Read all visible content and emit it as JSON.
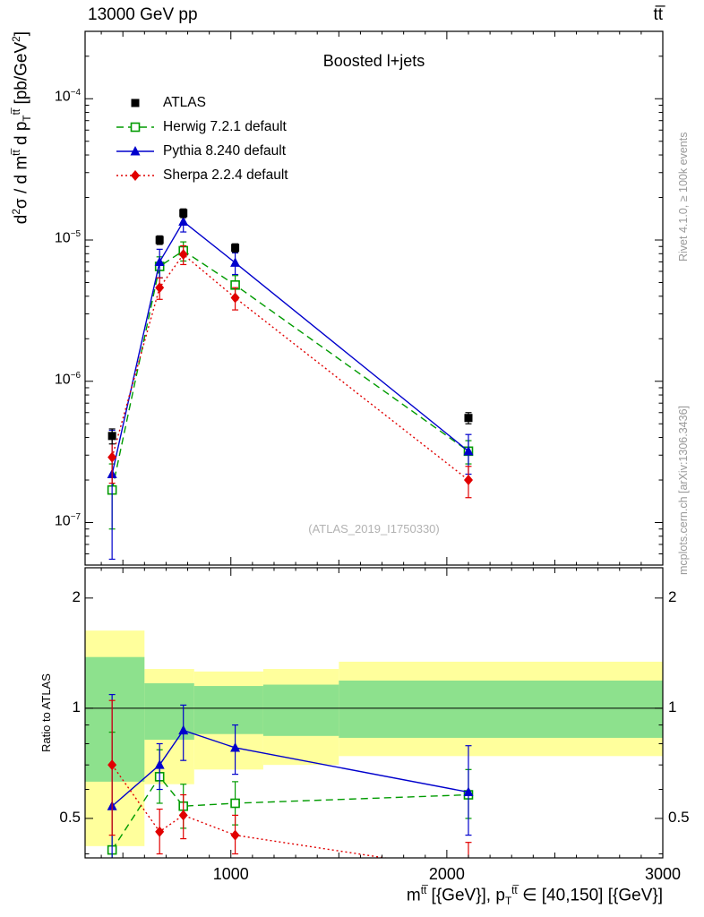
{
  "header": {
    "left_title": "13000 GeV pp",
    "right_title": "tt̅"
  },
  "panel_title": "Boosted l+jets",
  "watermark": "(ATLAS_2019_I1750330)",
  "side_notes": {
    "top": "Rivet 4.1.0, ≥ 100k events",
    "bottom": "mcplots.cern.ch [arXiv:1306.3436]"
  },
  "axes": {
    "ratio_title": "Ratio to ATLAS",
    "y_main_title_rich": [
      [
        "n",
        "d"
      ],
      [
        "sup",
        "2"
      ],
      [
        "n",
        "σ / d m"
      ],
      [
        "sup",
        "tt̅"
      ],
      [
        "n",
        " d p"
      ],
      [
        "sub",
        "T"
      ],
      [
        "sup",
        "tt̅"
      ],
      [
        "n",
        " [pb/GeV"
      ],
      [
        "sup",
        "2"
      ],
      [
        "n",
        "]"
      ]
    ],
    "x_title_rich": [
      [
        "n",
        "m"
      ],
      [
        "sup",
        "tt̅"
      ],
      [
        "n",
        " [{GeV}], p"
      ],
      [
        "sub",
        "T"
      ],
      [
        "sup",
        "tt̅"
      ],
      [
        "n",
        " ∈ [40,150] [{GeV}]"
      ]
    ]
  },
  "colors": {
    "atlas": "#000000",
    "herwig": "#009b00",
    "pythia": "#0000cc",
    "sherpa": "#e10000",
    "band_yellow": "#ffff9c",
    "band_green": "#8de18d"
  },
  "chart_data": {
    "type": "line",
    "title": "Boosted l+jets",
    "xlabel": "m^{tt} [{GeV}], p_T^{tt} ∈ [40,150] [{GeV}]",
    "ylabel": "d^2σ / d m^{tt} d p_T^{tt} [pb/GeV^2]",
    "xlim": [
      325,
      3000
    ],
    "x_major_ticks": [
      1000,
      2000,
      3000
    ],
    "ylim_main": [
      5e-08,
      0.0003
    ],
    "y_main_decades": [
      -4,
      -5,
      -6,
      -7
    ],
    "ylim_ratio": [
      0.39,
      2.42
    ],
    "ratio_labeled_ticks": [
      0.5,
      1,
      2
    ],
    "ratio_minor_ticks": [
      0.4,
      0.6,
      0.7,
      0.8,
      0.9
    ],
    "legend_position": "top-left",
    "grid": false,
    "x": [
      450,
      670,
      780,
      1020,
      2100
    ],
    "series": [
      {
        "name": "ATLAS",
        "color": "#000000",
        "line": "none",
        "marker": "square-filled",
        "values": [
          4.1e-07,
          1e-05,
          1.55e-05,
          8.8e-06,
          5.5e-07
        ],
        "yerr": [
          [
            5e-08,
            5e-08
          ],
          [
            7e-07,
            7e-07
          ],
          [
            1.1e-06,
            1.1e-06
          ],
          [
            6e-07,
            6e-07
          ],
          [
            5e-08,
            5e-08
          ]
        ]
      },
      {
        "name": "Herwig 7.2.1 default",
        "color": "#009b00",
        "line": "dashed",
        "marker": "square-open",
        "values": [
          1.7e-07,
          6.5e-06,
          8.4e-06,
          4.8e-06,
          3.2e-07
        ],
        "yerr": [
          [
            8e-08,
            9e-08
          ],
          [
            1.1e-06,
            1.1e-06
          ],
          [
            1.3e-06,
            1.3e-06
          ],
          [
            8e-07,
            8e-07
          ],
          [
            6e-08,
            6e-08
          ]
        ]
      },
      {
        "name": "Pythia 8.240 default",
        "color": "#0000cc",
        "line": "solid",
        "marker": "triangle-filled",
        "values": [
          2.2e-07,
          7e-06,
          1.35e-05,
          6.9e-06,
          3.2e-07
        ],
        "yerr": [
          [
            1.65e-07,
            2.3e-07
          ],
          [
            1.6e-06,
            1.6e-06
          ],
          [
            2.1e-06,
            2.1e-06
          ],
          [
            1.2e-06,
            1.2e-06
          ],
          [
            1e-07,
            1e-07
          ]
        ]
      },
      {
        "name": "Sherpa 2.2.4 default",
        "color": "#e10000",
        "line": "dotted",
        "marker": "diamond-filled",
        "values": [
          2.9e-07,
          4.6e-06,
          7.9e-06,
          3.9e-06,
          2e-07
        ],
        "yerr": [
          [
            1e-07,
            1.4e-07
          ],
          [
            8e-07,
            8e-07
          ],
          [
            1.2e-06,
            1.2e-06
          ],
          [
            7e-07,
            7e-07
          ],
          [
            5e-08,
            5e-08
          ]
        ]
      }
    ],
    "ratio": {
      "baseline": "ATLAS",
      "series": [
        {
          "name": "Herwig 7.2.1 default",
          "values": [
            0.41,
            0.65,
            0.54,
            0.55,
            0.58
          ],
          "yerr": [
            [
              0.13,
              0.45
            ],
            [
              0.1,
              0.12
            ],
            [
              0.07,
              0.08
            ],
            [
              0.07,
              0.08
            ],
            [
              0.08,
              0.1
            ]
          ]
        },
        {
          "name": "Pythia 8.240 default",
          "values": [
            0.54,
            0.7,
            0.87,
            0.78,
            0.59
          ],
          "yerr": [
            [
              0.16,
              0.55
            ],
            [
              0.1,
              0.1
            ],
            [
              0.15,
              0.15
            ],
            [
              0.12,
              0.12
            ],
            [
              0.14,
              0.2
            ]
          ]
        },
        {
          "name": "Sherpa 2.2.4 default",
          "values": [
            0.7,
            0.46,
            0.51,
            0.45,
            0.36
          ],
          "yerr": [
            [
              0.25,
              0.35
            ],
            [
              0.06,
              0.07
            ],
            [
              0.07,
              0.07
            ],
            [
              0.05,
              0.06
            ],
            [
              0.06,
              0.07
            ]
          ]
        }
      ],
      "bands": [
        {
          "x0": 325,
          "x1": 600,
          "green": [
            0.63,
            1.38
          ],
          "yellow": [
            0.42,
            1.63
          ]
        },
        {
          "x0": 600,
          "x1": 830,
          "green": [
            0.82,
            1.17
          ],
          "yellow": [
            0.62,
            1.28
          ]
        },
        {
          "x0": 830,
          "x1": 1150,
          "green": [
            0.85,
            1.15
          ],
          "yellow": [
            0.68,
            1.26
          ]
        },
        {
          "x0": 1150,
          "x1": 1500,
          "green": [
            0.84,
            1.16
          ],
          "yellow": [
            0.7,
            1.28
          ]
        },
        {
          "x0": 1500,
          "x1": 3000,
          "green": [
            0.83,
            1.19
          ],
          "yellow": [
            0.74,
            1.34
          ]
        }
      ]
    }
  }
}
